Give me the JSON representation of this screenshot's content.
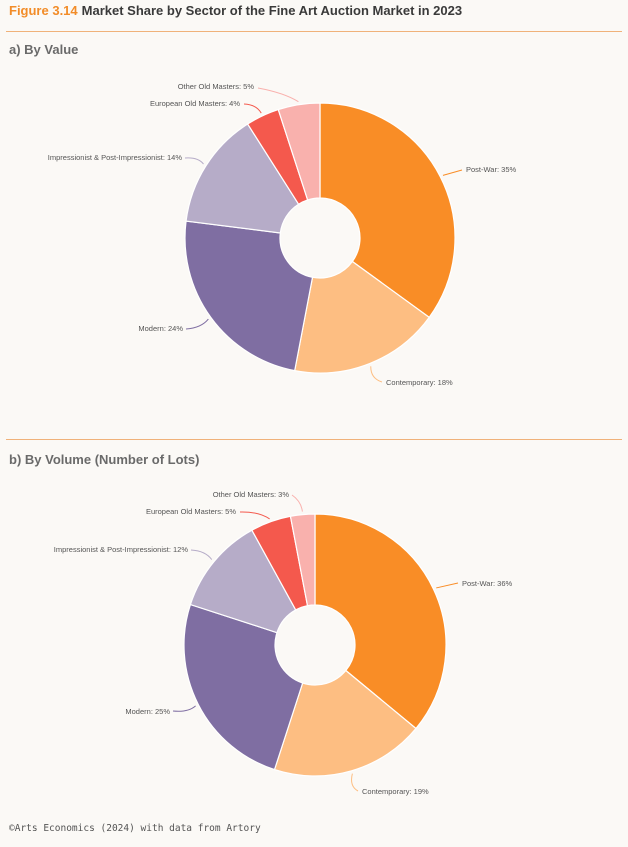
{
  "figure": {
    "number": "Figure 3.14",
    "title": "Market Share by Sector of the Fine Art Auction Market in 2023"
  },
  "footer": "©Arts Economics (2024) with data from Artory",
  "chart_data": [
    {
      "type": "pie",
      "title": "a) By Value",
      "categories": [
        "Post-War",
        "Contemporary",
        "Modern",
        "Impressionist & Post-Impressionist",
        "European Old Masters",
        "Other Old Masters"
      ],
      "values": [
        35,
        18,
        24,
        14,
        4,
        5
      ],
      "labels": [
        "Post-War: 35%",
        "Contemporary: 18%",
        "Modern: 24%",
        "Impressionist & Post-Impressionist: 14%",
        "European Old Masters: 4%",
        "Other Old Masters: 5%"
      ],
      "colors": [
        "#f98d26",
        "#fdbe82",
        "#7f6ea2",
        "#b6acc8",
        "#f4594d",
        "#f9b1ad"
      ],
      "legend": "none"
    },
    {
      "type": "pie",
      "title": "b) By Volume (Number of Lots)",
      "categories": [
        "Post-War",
        "Contemporary",
        "Modern",
        "Impressionist & Post-Impressionist",
        "European Old Masters",
        "Other Old Masters"
      ],
      "values": [
        36,
        19,
        25,
        12,
        5,
        3
      ],
      "labels": [
        "Post-War: 36%",
        "Contemporary: 19%",
        "Modern: 25%",
        "Impressionist & Post-Impressionist: 12%",
        "European Old Masters: 5%",
        "Other Old Masters: 3%"
      ],
      "colors": [
        "#f98d26",
        "#fdbe82",
        "#7f6ea2",
        "#b6acc8",
        "#f4594d",
        "#f9b1ad"
      ],
      "legend": "none"
    }
  ]
}
